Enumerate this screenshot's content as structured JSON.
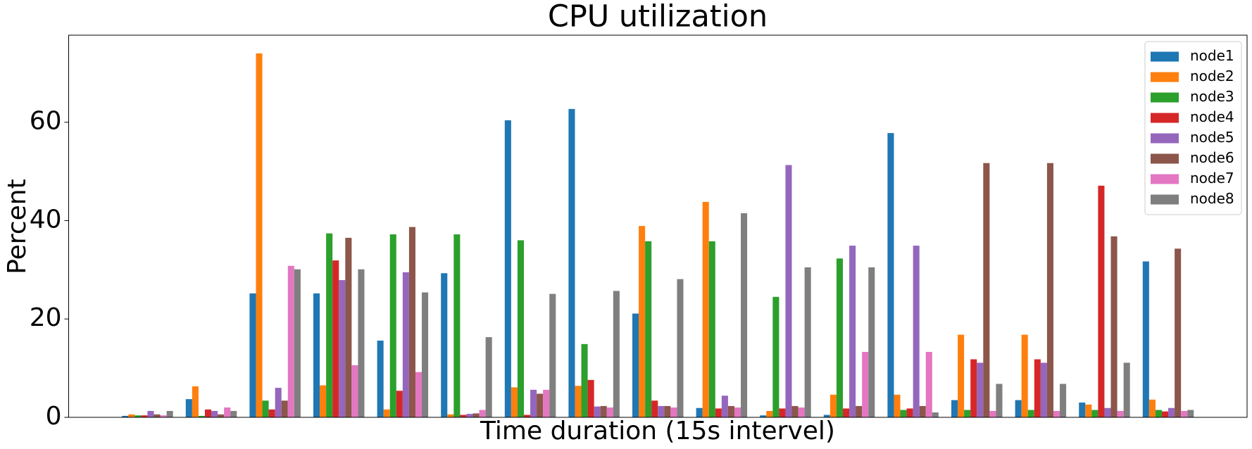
{
  "chart_data": {
    "type": "bar",
    "title": "CPU utilization",
    "x_label": "Time duration (15s intervel)",
    "y_label": "Percent",
    "categories": [
      null,
      null,
      null,
      null,
      null,
      null,
      null,
      null,
      null,
      null,
      null,
      null,
      null,
      null,
      null,
      null,
      null
    ],
    "series": [
      {
        "name": "node1",
        "color": "#1f77b4",
        "values": [
          0.3,
          3.7,
          25.2,
          25.2,
          15.6,
          29.3,
          60.4,
          62.7,
          21.1,
          1.9,
          0.4,
          0.5,
          57.8,
          3.5,
          3.5,
          3.0,
          31.7
        ]
      },
      {
        "name": "node2",
        "color": "#ff7f0e",
        "values": [
          0.6,
          6.3,
          74.0,
          6.5,
          1.6,
          0.6,
          6.1,
          6.4,
          38.9,
          43.8,
          1.3,
          4.6,
          4.6,
          16.8,
          16.8,
          2.6,
          3.6
        ]
      },
      {
        "name": "node3",
        "color": "#2ca02c",
        "values": [
          0.4,
          0.3,
          3.4,
          37.4,
          37.2,
          37.2,
          36.0,
          14.9,
          35.8,
          35.8,
          24.5,
          32.3,
          1.5,
          1.5,
          1.5,
          1.5,
          1.5
        ]
      },
      {
        "name": "node4",
        "color": "#d62728",
        "values": [
          0.4,
          1.6,
          1.6,
          31.9,
          5.4,
          0.5,
          0.5,
          7.6,
          3.4,
          1.8,
          1.8,
          1.8,
          1.8,
          11.8,
          11.8,
          47.1,
          1.2
        ]
      },
      {
        "name": "node5",
        "color": "#9467bd",
        "values": [
          1.3,
          1.3,
          6.0,
          27.9,
          29.5,
          0.7,
          5.6,
          2.2,
          2.3,
          4.4,
          51.3,
          34.9,
          34.9,
          11.1,
          11.1,
          1.9,
          1.9
        ]
      },
      {
        "name": "node6",
        "color": "#8c564b",
        "values": [
          0.6,
          0.6,
          3.4,
          36.5,
          38.7,
          0.8,
          4.8,
          2.3,
          2.3,
          2.3,
          2.3,
          2.3,
          2.3,
          51.7,
          51.7,
          36.8,
          34.3
        ]
      },
      {
        "name": "node7",
        "color": "#e377c2",
        "values": [
          0.4,
          2.0,
          30.8,
          10.6,
          9.2,
          1.5,
          5.6,
          2.0,
          2.0,
          2.0,
          2.0,
          13.3,
          13.3,
          1.3,
          1.3,
          1.3,
          1.3
        ]
      },
      {
        "name": "node8",
        "color": "#7f7f7f",
        "values": [
          1.3,
          1.3,
          30.1,
          30.1,
          25.4,
          16.3,
          25.1,
          25.7,
          28.1,
          41.5,
          30.5,
          30.5,
          1.0,
          6.8,
          6.8,
          11.1,
          1.5
        ]
      }
    ],
    "ylim": [
      0,
      77.7
    ],
    "yticks": [
      0,
      20,
      40,
      60
    ],
    "grid": false,
    "legend": "upper right"
  }
}
